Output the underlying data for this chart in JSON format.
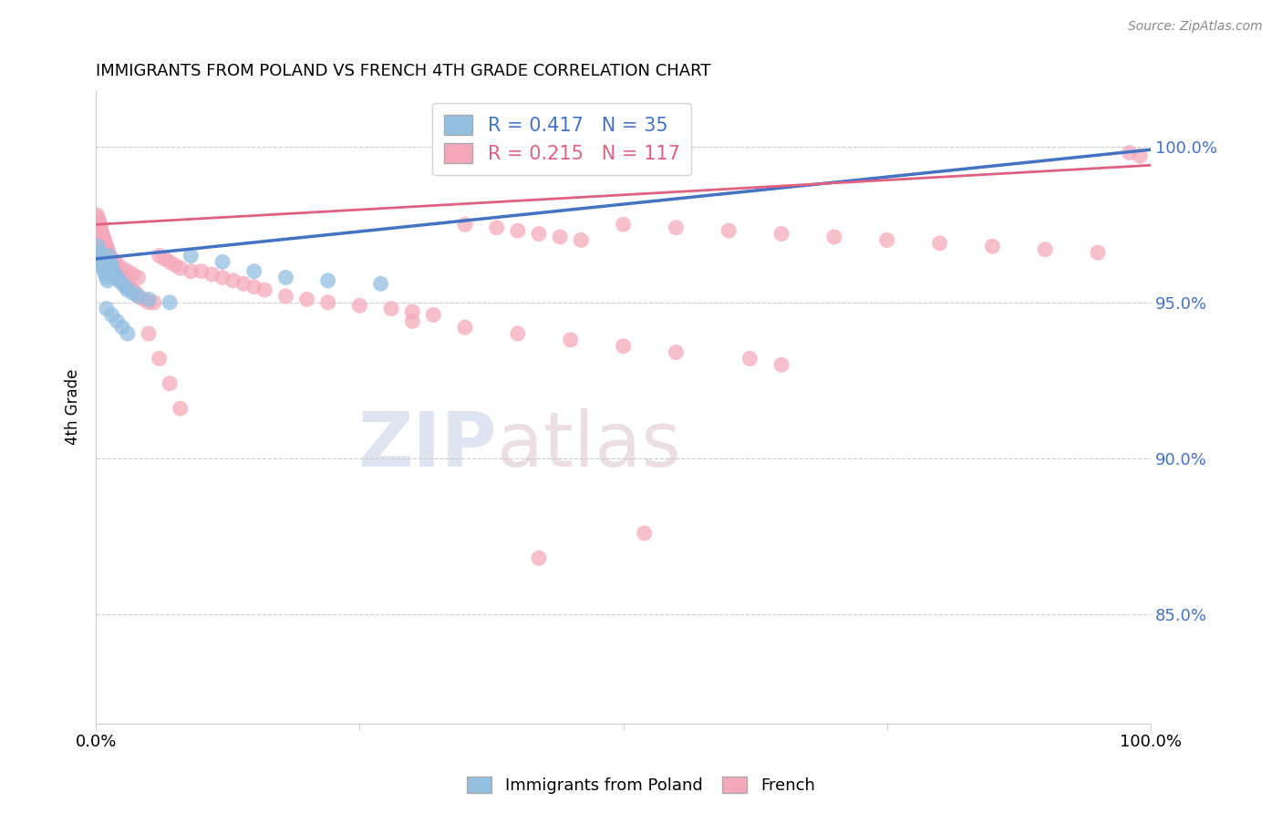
{
  "title": "IMMIGRANTS FROM POLAND VS FRENCH 4TH GRADE CORRELATION CHART",
  "source": "Source: ZipAtlas.com",
  "ylabel": "4th Grade",
  "ytick_labels": [
    "85.0%",
    "90.0%",
    "95.0%",
    "100.0%"
  ],
  "ytick_values": [
    0.85,
    0.9,
    0.95,
    1.0
  ],
  "xlim": [
    0.0,
    1.0
  ],
  "ylim": [
    0.815,
    1.018
  ],
  "legend_blue_label": "Immigrants from Poland",
  "legend_pink_label": "French",
  "R_blue": 0.417,
  "N_blue": 35,
  "R_pink": 0.215,
  "N_pink": 117,
  "blue_color": "#93bfe0",
  "pink_color": "#f5a8bc",
  "blue_line_color": "#4472c4",
  "pink_line_color": "#e06080",
  "blue_line_start_y": 0.964,
  "blue_line_end_y": 0.999,
  "pink_line_start_y": 0.975,
  "pink_line_end_y": 0.994,
  "blue_scatter_x": [
    0.002,
    0.003,
    0.004,
    0.005,
    0.006,
    0.007,
    0.008,
    0.009,
    0.01,
    0.011,
    0.012,
    0.013,
    0.015,
    0.016,
    0.018,
    0.02,
    0.022,
    0.025,
    0.028,
    0.03,
    0.035,
    0.04,
    0.05,
    0.07,
    0.09,
    0.12,
    0.15,
    0.18,
    0.22,
    0.27,
    0.01,
    0.015,
    0.02,
    0.025,
    0.03
  ],
  "blue_scatter_y": [
    0.968,
    0.966,
    0.965,
    0.963,
    0.962,
    0.961,
    0.96,
    0.959,
    0.958,
    0.957,
    0.965,
    0.963,
    0.962,
    0.96,
    0.959,
    0.958,
    0.957,
    0.956,
    0.955,
    0.954,
    0.953,
    0.952,
    0.951,
    0.95,
    0.965,
    0.963,
    0.96,
    0.958,
    0.957,
    0.956,
    0.948,
    0.946,
    0.944,
    0.942,
    0.94
  ],
  "pink_scatter_x": [
    0.001,
    0.001,
    0.002,
    0.002,
    0.003,
    0.003,
    0.003,
    0.004,
    0.004,
    0.005,
    0.005,
    0.006,
    0.006,
    0.007,
    0.007,
    0.008,
    0.008,
    0.009,
    0.009,
    0.01,
    0.01,
    0.011,
    0.012,
    0.012,
    0.013,
    0.014,
    0.015,
    0.015,
    0.016,
    0.017,
    0.018,
    0.019,
    0.02,
    0.02,
    0.021,
    0.022,
    0.023,
    0.024,
    0.025,
    0.026,
    0.027,
    0.028,
    0.03,
    0.032,
    0.035,
    0.038,
    0.04,
    0.045,
    0.05,
    0.055,
    0.06,
    0.065,
    0.07,
    0.075,
    0.08,
    0.09,
    0.1,
    0.11,
    0.12,
    0.13,
    0.14,
    0.15,
    0.16,
    0.18,
    0.2,
    0.22,
    0.25,
    0.28,
    0.3,
    0.32,
    0.35,
    0.38,
    0.4,
    0.42,
    0.44,
    0.46,
    0.5,
    0.55,
    0.6,
    0.65,
    0.7,
    0.75,
    0.8,
    0.85,
    0.9,
    0.95,
    0.98,
    0.99,
    0.002,
    0.003,
    0.004,
    0.005,
    0.006,
    0.007,
    0.008,
    0.01,
    0.012,
    0.015,
    0.018,
    0.02,
    0.025,
    0.03,
    0.035,
    0.04,
    0.05,
    0.06,
    0.07,
    0.08,
    0.3,
    0.35,
    0.4,
    0.45,
    0.5,
    0.55,
    0.62,
    0.42,
    0.52,
    0.65
  ],
  "pink_scatter_y": [
    0.978,
    0.976,
    0.977,
    0.975,
    0.976,
    0.974,
    0.973,
    0.975,
    0.974,
    0.973,
    0.972,
    0.972,
    0.971,
    0.971,
    0.97,
    0.97,
    0.969,
    0.969,
    0.968,
    0.968,
    0.967,
    0.967,
    0.966,
    0.965,
    0.965,
    0.964,
    0.964,
    0.963,
    0.963,
    0.962,
    0.962,
    0.961,
    0.961,
    0.96,
    0.96,
    0.959,
    0.959,
    0.958,
    0.958,
    0.957,
    0.957,
    0.956,
    0.956,
    0.955,
    0.954,
    0.953,
    0.952,
    0.951,
    0.95,
    0.95,
    0.965,
    0.964,
    0.963,
    0.962,
    0.961,
    0.96,
    0.96,
    0.959,
    0.958,
    0.957,
    0.956,
    0.955,
    0.954,
    0.952,
    0.951,
    0.95,
    0.949,
    0.948,
    0.947,
    0.946,
    0.975,
    0.974,
    0.973,
    0.972,
    0.971,
    0.97,
    0.975,
    0.974,
    0.973,
    0.972,
    0.971,
    0.97,
    0.969,
    0.968,
    0.967,
    0.966,
    0.998,
    0.997,
    0.973,
    0.972,
    0.971,
    0.97,
    0.969,
    0.968,
    0.967,
    0.966,
    0.965,
    0.964,
    0.963,
    0.962,
    0.961,
    0.96,
    0.959,
    0.958,
    0.94,
    0.932,
    0.924,
    0.916,
    0.944,
    0.942,
    0.94,
    0.938,
    0.936,
    0.934,
    0.932,
    0.868,
    0.876,
    0.93
  ]
}
